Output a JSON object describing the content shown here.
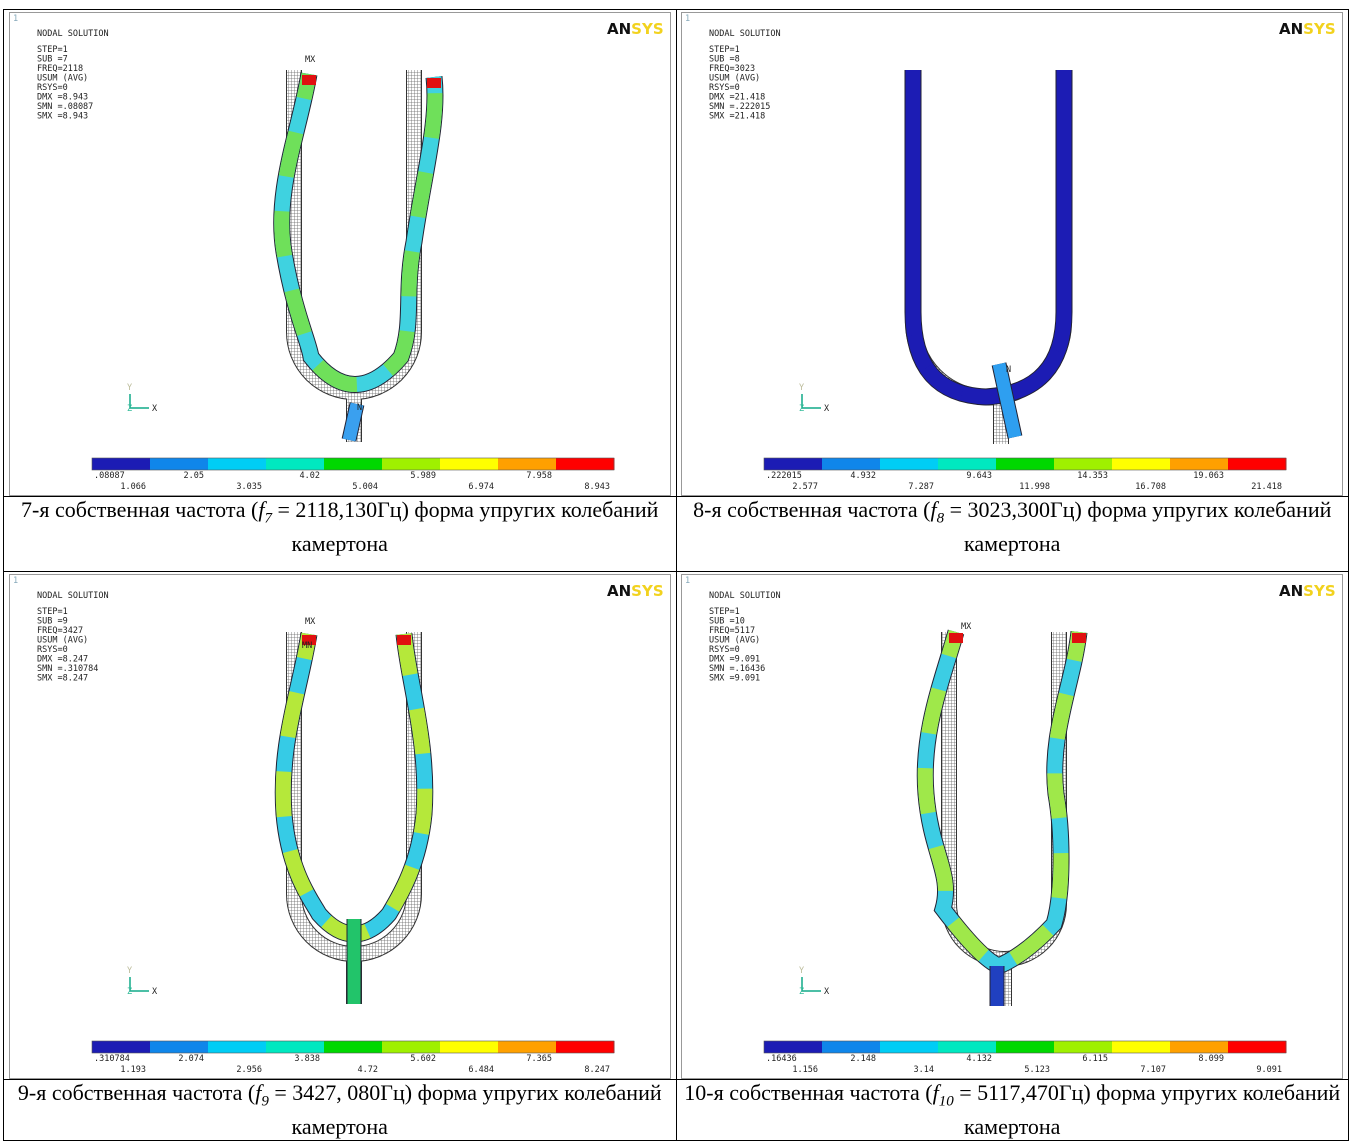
{
  "panels": [
    {
      "number_label": "1",
      "title": "NODAL SOLUTION",
      "info": [
        "STEP=1",
        "SUB =7",
        "FREQ=2118",
        "USUM      (AVG)",
        "RSYS=0",
        "DMX =8.943",
        "SMN =.08087",
        "SMX =8.943"
      ],
      "logo_dark": "AN",
      "logo_light": "SYS",
      "max_label": "MX",
      "min_label": "N",
      "axis_labels": [
        "Y",
        "Z",
        "X"
      ],
      "legend_values": [
        ".08087",
        "1.066",
        "2.05",
        "3.035",
        "4.02",
        "5.004",
        "5.989",
        "6.974",
        "7.958",
        "8.943"
      ],
      "caption": {
        "prefix": "7-я собственная частота (",
        "symbol": "f",
        "subscript": "7",
        "suffix": " = 2118,130Гц) форма упругих колебаний камертона"
      }
    },
    {
      "number_label": "1",
      "title": "NODAL SOLUTION",
      "info": [
        "STEP=1",
        "SUB =8",
        "FREQ=3023",
        "USUM      (AVG)",
        "RSYS=0",
        "DMX =21.418",
        "SMN =.222015",
        "SMX =21.418"
      ],
      "logo_dark": "AN",
      "logo_light": "SYS",
      "min_label": "N",
      "axis_labels": [
        "Y",
        "Z",
        "X"
      ],
      "legend_values": [
        ".222015",
        "2.577",
        "4.932",
        "7.287",
        "9.643",
        "11.998",
        "14.353",
        "16.708",
        "19.063",
        "21.418"
      ],
      "caption": {
        "prefix": "8-я собственная частота (",
        "symbol": "f",
        "subscript": "8",
        "suffix": " = 3023,300Гц) форма упругих колебаний камертона"
      }
    },
    {
      "number_label": "1",
      "title": "NODAL SOLUTION",
      "info": [
        "STEP=1",
        "SUB =9",
        "FREQ=3427",
        "USUM      (AVG)",
        "RSYS=0",
        "DMX =8.247",
        "SMN =.310784",
        "SMX =8.247"
      ],
      "logo_dark": "AN",
      "logo_light": "SYS",
      "max_label": "MX",
      "min_label": "MN",
      "axis_labels": [
        "Y",
        "Z",
        "X"
      ],
      "legend_values": [
        ".310784",
        "1.193",
        "2.074",
        "2.956",
        "3.838",
        "4.72",
        "5.602",
        "6.484",
        "7.365",
        "8.247"
      ],
      "caption": {
        "prefix": "9-я собственная частота (",
        "symbol": "f",
        "subscript": "9",
        "suffix": " = 3427, 080Гц) форма упругих колебаний камертона"
      }
    },
    {
      "number_label": "1",
      "title": "NODAL SOLUTION",
      "info": [
        "STEP=1",
        "SUB =10",
        "FREQ=5117",
        "USUM      (AVG)",
        "RSYS=0",
        "DMX =9.091",
        "SMN =.16436",
        "SMX =9.091"
      ],
      "logo_dark": "AN",
      "logo_light": "SYS",
      "max_label": "MX",
      "axis_labels": [
        "Y",
        "Z",
        "X"
      ],
      "legend_values": [
        ".16436",
        "1.156",
        "2.148",
        "3.14",
        "4.132",
        "5.123",
        "6.115",
        "7.107",
        "8.099",
        "9.091"
      ],
      "caption": {
        "prefix": "10-я собственная частота (",
        "symbol": "f",
        "subscript": "10",
        "suffix": " = 5117,470Гц) форма упругих колебаний камертона"
      }
    }
  ]
}
